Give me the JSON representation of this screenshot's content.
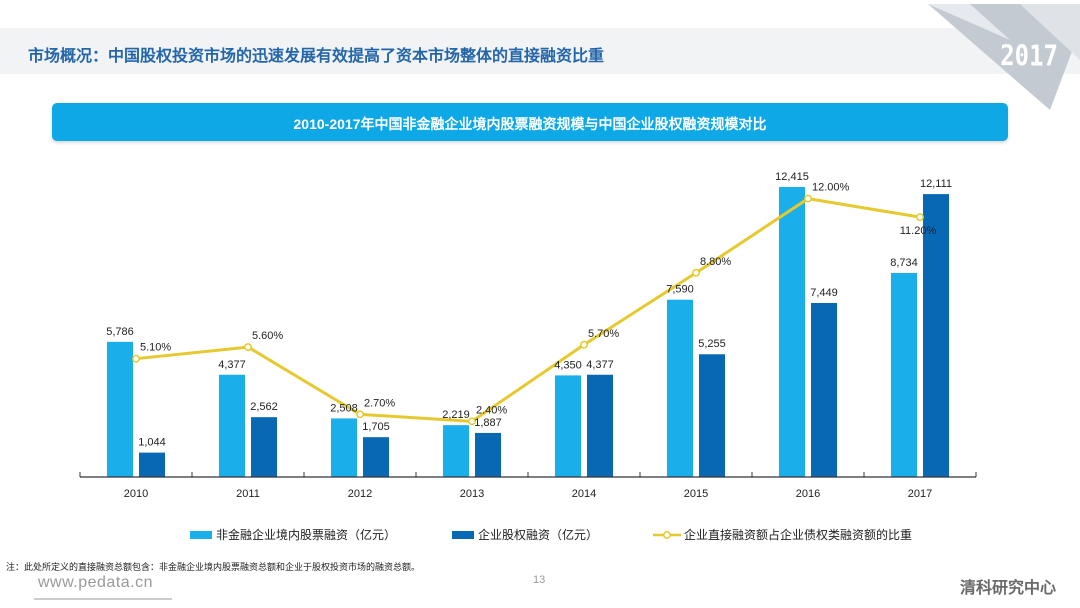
{
  "header": {
    "title": "市场概况：中国股权投资市场的迅速发展有效提高了资本市场整体的直接融资比重",
    "year_badge": "2017"
  },
  "colors": {
    "title_blue": "#2466a8",
    "banner_blue": "#0fa8e6",
    "series_light_blue": "#1aaeea",
    "series_dark_blue": "#0868b4",
    "line_yellow": "#e6c92e"
  },
  "chart_data": {
    "type": "bar",
    "title": "2010-2017年中国非金融企业境内股票融资规模与中国企业股权融资规模对比",
    "categories": [
      "2010",
      "2011",
      "2012",
      "2013",
      "2014",
      "2015",
      "2016",
      "2017"
    ],
    "series": [
      {
        "name": "非金融企业境内股票融资（亿元）",
        "type": "bar",
        "values": [
          5786,
          4377,
          2508,
          2219,
          4350,
          7590,
          12415,
          8734
        ],
        "labels": [
          "5,786",
          "4,377",
          "2,508",
          "2,219",
          "4,350",
          "7,590",
          "12,415",
          "8,734"
        ]
      },
      {
        "name": "企业股权融资（亿元）",
        "type": "bar",
        "values": [
          1044,
          2562,
          1705,
          1887,
          4377,
          5255,
          7449,
          12111
        ],
        "labels": [
          "1,044",
          "2,562",
          "1,705",
          "1,887",
          "4,377",
          "5,255",
          "7,449",
          "12,111"
        ]
      },
      {
        "name": "企业直接融资额占企业债权类融资额的比重",
        "type": "line",
        "axis": "secondary",
        "values": [
          5.1,
          5.6,
          2.7,
          2.4,
          5.7,
          8.8,
          12.0,
          11.2
        ],
        "labels": [
          "5.10%",
          "5.60%",
          "2.70%",
          "2.40%",
          "5.70%",
          "8.80%",
          "12.00%",
          "11.20%"
        ]
      }
    ],
    "xlabel": "",
    "ylabel": "",
    "ylim": [
      0,
      12415
    ],
    "y2lim": [
      0,
      12.5
    ],
    "grid": false,
    "legend": "bottom"
  },
  "footer": {
    "note": "注：此处所定义的直接融资总额包含：非金融企业境内股票融资总额和企业于股权投资市场的融资总额。",
    "website": "www.pedata.cn",
    "page_number": "13",
    "brand": "清科研究中心"
  }
}
